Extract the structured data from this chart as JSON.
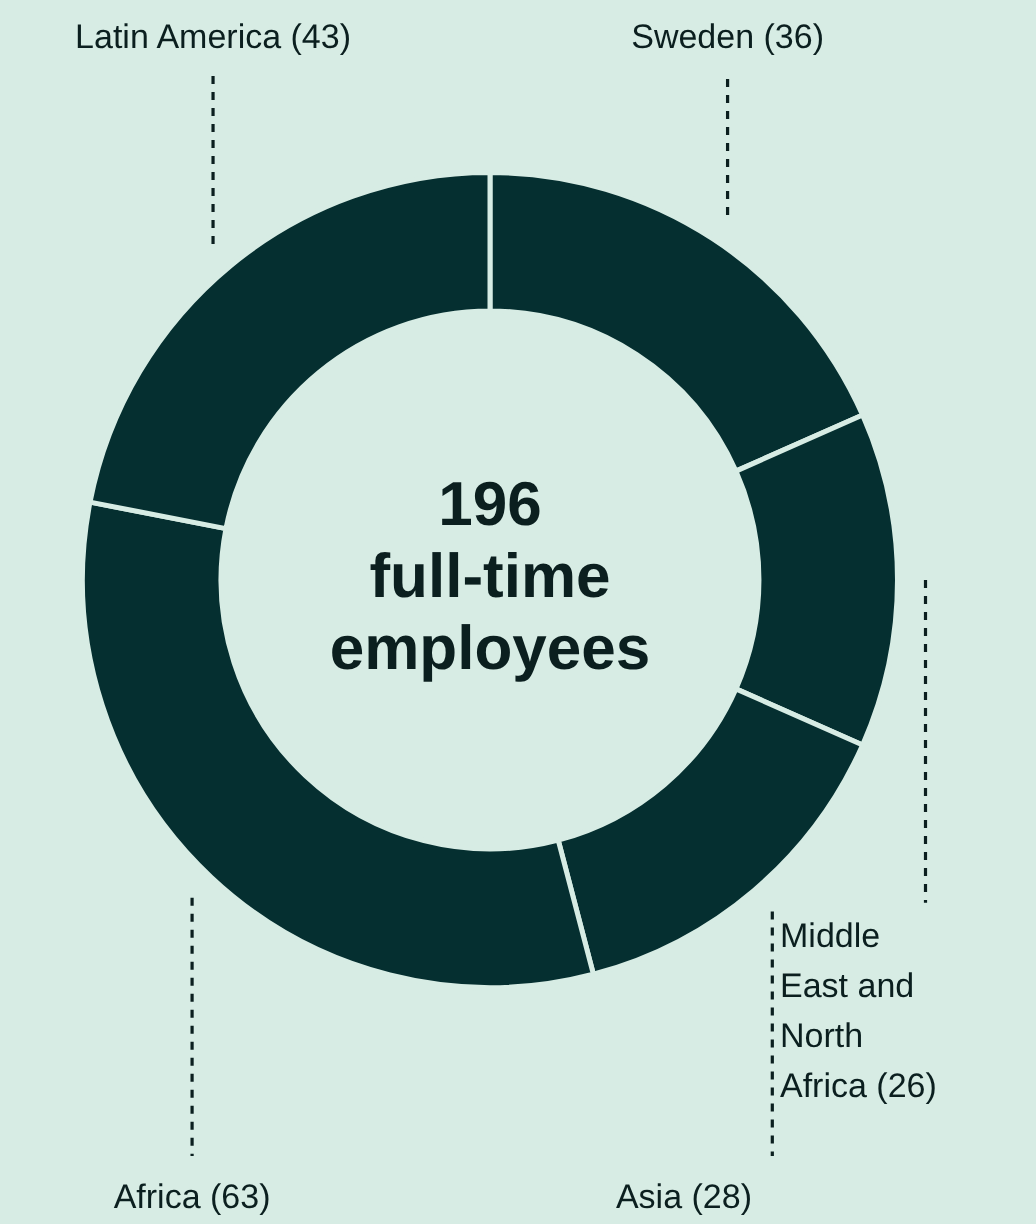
{
  "chart_data": {
    "type": "donut",
    "title": "196 full-time employees",
    "categories": [
      "Sweden",
      "Middle East and North Africa",
      "Asia",
      "Africa",
      "Latin America"
    ],
    "values": [
      36,
      26,
      28,
      63,
      43
    ],
    "colors": [
      "#052f30",
      "#052f30",
      "#052f30",
      "#052f30",
      "#052f30"
    ],
    "value_labels": [
      "(36)",
      "(26)",
      "(28)",
      "(63)",
      "(43)"
    ]
  }
}
